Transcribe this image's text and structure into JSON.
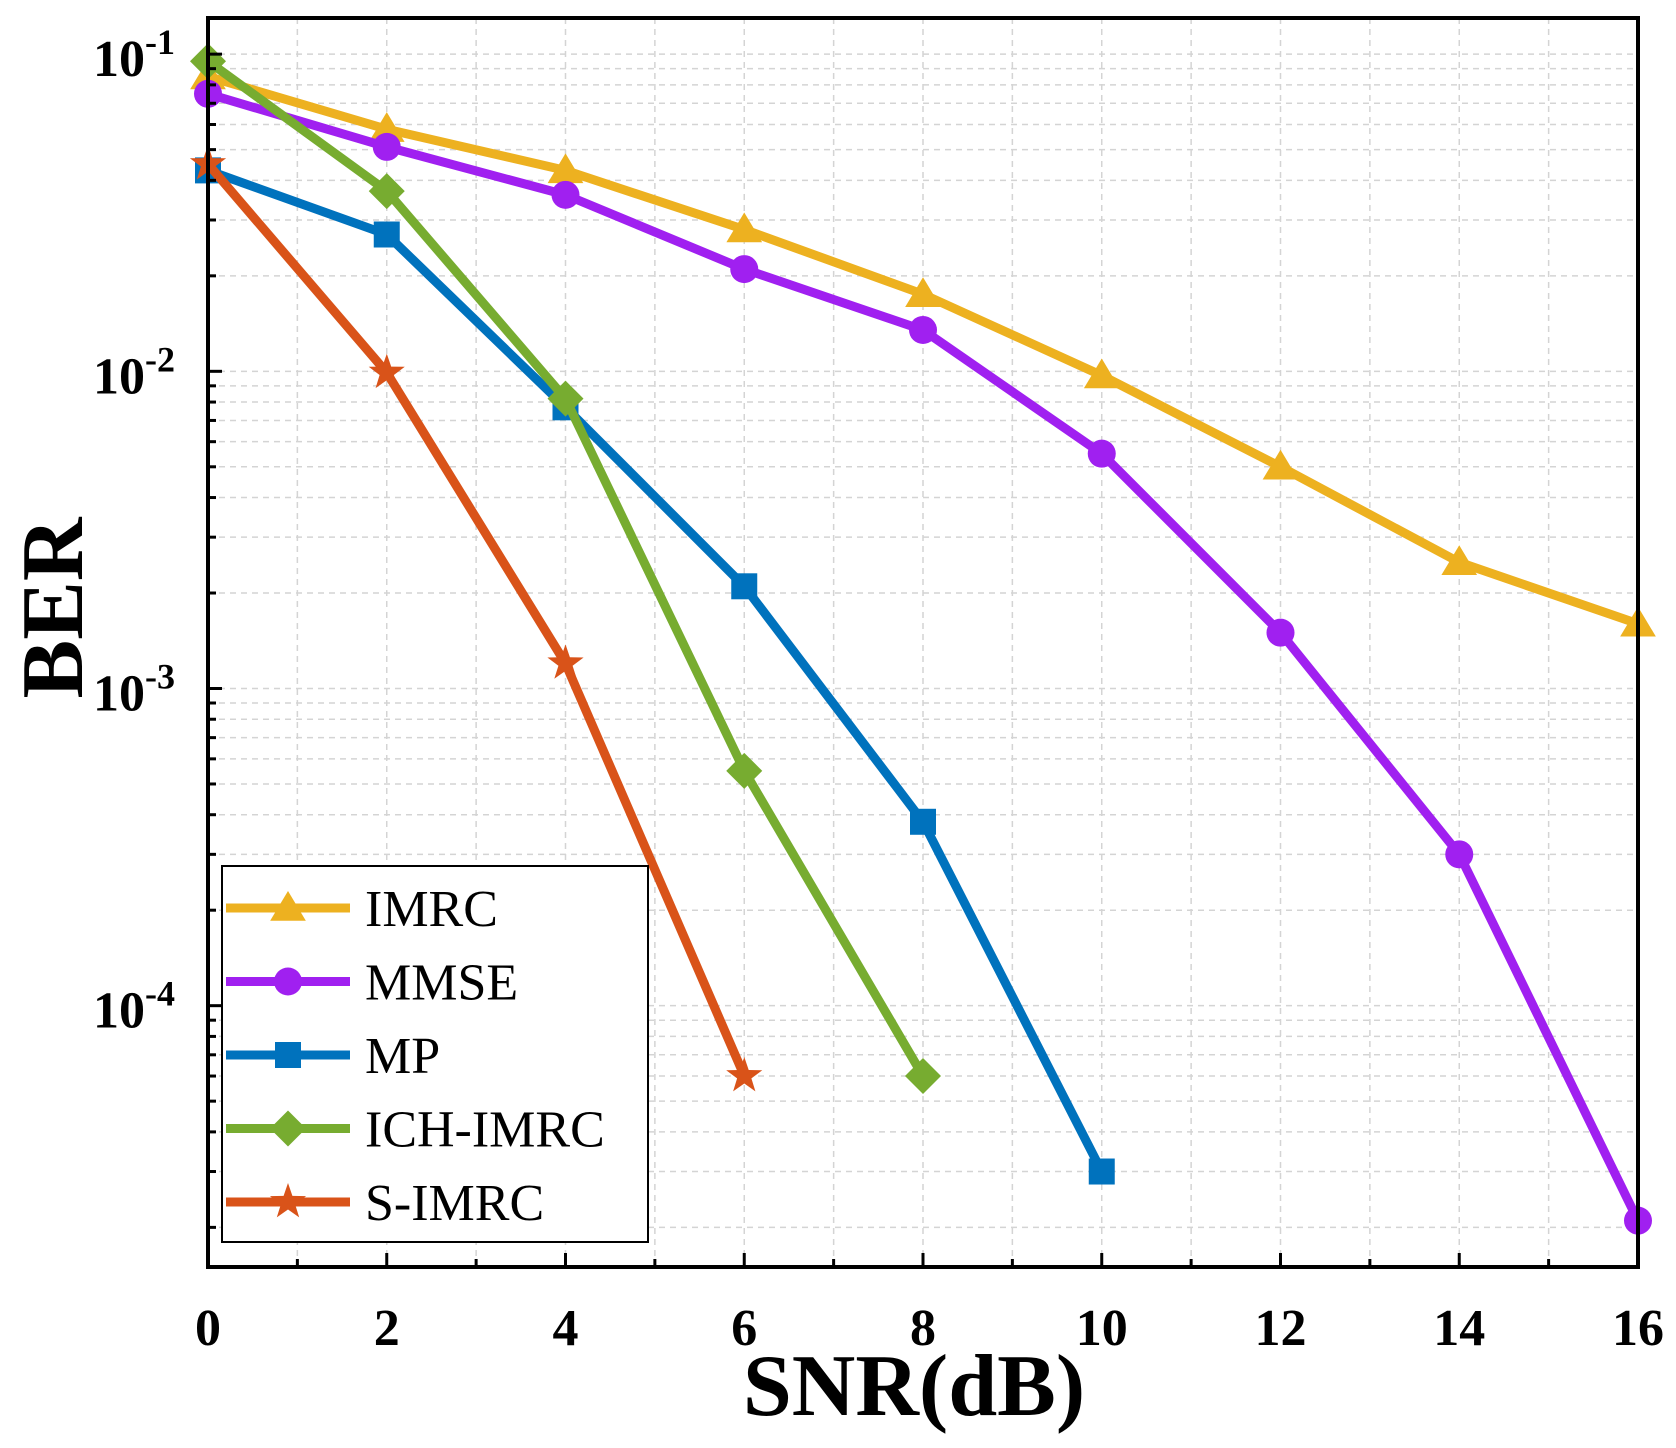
{
  "chart_data": {
    "type": "line",
    "xlabel": "SNR(dB)",
    "ylabel": "BER",
    "xlim": [
      0,
      16
    ],
    "ylim": [
      1.5e-05,
      0.13
    ],
    "yscale": "log",
    "grid": true,
    "legend_position": "bottom-left",
    "x_ticks": [
      "0",
      "2",
      "4",
      "6",
      "8",
      "10",
      "12",
      "14",
      "16"
    ],
    "y_ticks": [
      {
        "base": "10",
        "exp": "-1"
      },
      {
        "base": "10",
        "exp": "-2"
      },
      {
        "base": "10",
        "exp": "-3"
      },
      {
        "base": "10",
        "exp": "-4"
      }
    ],
    "series": [
      {
        "name": "IMRC",
        "color": "#EDB120",
        "marker": "triangle",
        "x": [
          0,
          2,
          4,
          6,
          8,
          10,
          12,
          14,
          16
        ],
        "y": [
          0.085,
          0.058,
          0.043,
          0.028,
          0.0175,
          0.0097,
          0.005,
          0.0025,
          0.0016
        ]
      },
      {
        "name": "MMSE",
        "color": "#A020F0",
        "marker": "circle",
        "x": [
          0,
          2,
          4,
          6,
          8,
          10,
          12,
          14,
          16
        ],
        "y": [
          0.075,
          0.051,
          0.036,
          0.021,
          0.0135,
          0.0055,
          0.0015,
          0.0003,
          2.1e-05
        ]
      },
      {
        "name": "MP",
        "color": "#0072BD",
        "marker": "square",
        "x": [
          0,
          2,
          4,
          6,
          8,
          10
        ],
        "y": [
          0.043,
          0.027,
          0.0077,
          0.0021,
          0.00038,
          3e-05
        ]
      },
      {
        "name": "ICH-IMRC",
        "color": "#77AC30",
        "marker": "diamond",
        "x": [
          0,
          2,
          4,
          6,
          8
        ],
        "y": [
          0.095,
          0.037,
          0.0082,
          0.00055,
          6e-05
        ]
      },
      {
        "name": "S-IMRC",
        "color": "#D95319",
        "marker": "star",
        "x": [
          0,
          2,
          4,
          6
        ],
        "y": [
          0.045,
          0.0099,
          0.0012,
          6e-05
        ]
      }
    ]
  }
}
